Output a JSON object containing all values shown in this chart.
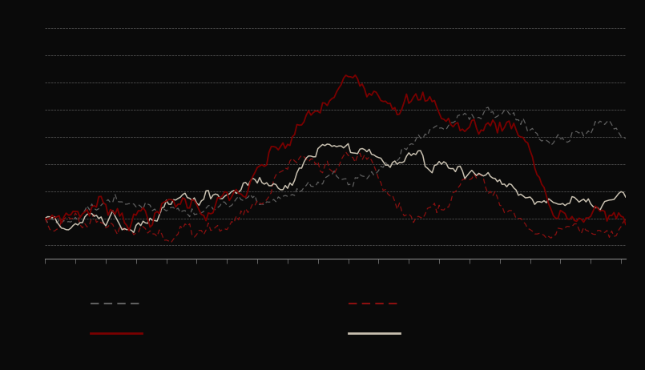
{
  "background_color": "#0a0a0a",
  "plot_bg_color": "#0a0a0a",
  "grid_color": "#ffffff",
  "n_points": 250,
  "ylim": [
    -0.15,
    0.75
  ],
  "line1_color": "#7a0000",
  "line2_color": "#c8c0b0",
  "line3_color": "#606060",
  "line4_color": "#8b1010",
  "figsize": [
    8.05,
    4.62
  ],
  "dpi": 100,
  "spine_color": "#888888"
}
